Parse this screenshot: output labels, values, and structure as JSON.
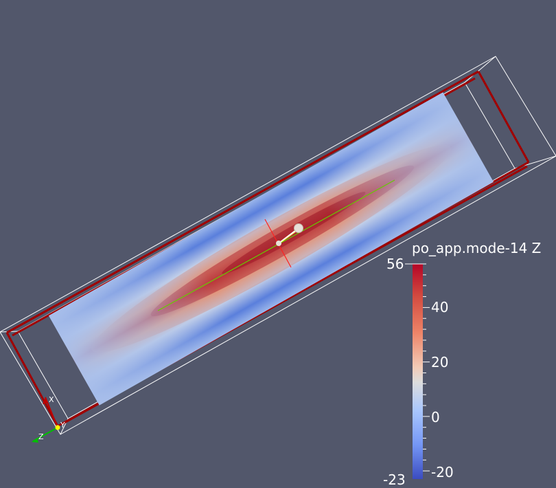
{
  "colorbar": {
    "title": "po_app.mode-14 Z",
    "min_label": "-23",
    "max_label": "56",
    "ticks": [
      "40",
      "20",
      "0",
      "-20"
    ],
    "range": [
      -23,
      56
    ],
    "colormap": "Cool to Warm",
    "colors": {
      "low": "#3b4cc0",
      "mid": "#dddddd",
      "high": "#b40426"
    }
  },
  "orientation_axes": {
    "x_label": "X",
    "y_label": "Y",
    "z_label": "Z"
  },
  "colors": {
    "background": "#52576b",
    "outline": "#ffffff",
    "box_edges": "#b00000",
    "center_line": "#66cc00",
    "cross_line": "#ff2020"
  }
}
